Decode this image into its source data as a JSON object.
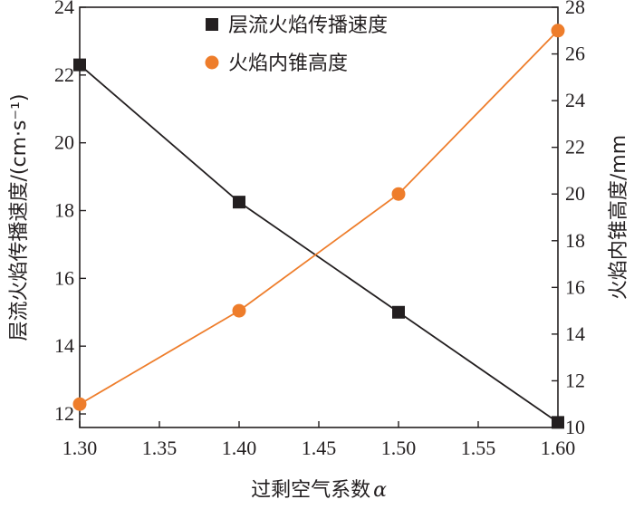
{
  "chart_data": {
    "type": "line",
    "xlabel": "过剩空气系数",
    "xlabel_symbol": "α",
    "ylabel_left": "层流火焰传播速度/(cm·s⁻¹)",
    "ylabel_right": "火焰内锥高度/mm",
    "xlim": [
      1.3,
      1.6
    ],
    "ylim_left": [
      11.6,
      24
    ],
    "ylim_right": [
      10,
      28
    ],
    "x_ticks": [
      "1.30",
      "1.35",
      "1.40",
      "1.45",
      "1.50",
      "1.55",
      "1.60"
    ],
    "y_left_ticks": [
      "12",
      "14",
      "16",
      "18",
      "20",
      "22",
      "24"
    ],
    "y_right_ticks": [
      "10",
      "12",
      "14",
      "16",
      "18",
      "20",
      "22",
      "24",
      "26",
      "28"
    ],
    "legend_position": "top-center",
    "series": [
      {
        "name": "层流火焰传播速度",
        "axis": "left",
        "marker": "square",
        "color": "#231f20",
        "x": [
          1.3,
          1.4,
          1.5,
          1.6
        ],
        "values": [
          22.3,
          18.25,
          15.0,
          11.75
        ]
      },
      {
        "name": "火焰内锥高度",
        "axis": "right",
        "marker": "circle",
        "color": "#ee7d2b",
        "x": [
          1.3,
          1.4,
          1.5,
          1.6
        ],
        "values": [
          11.0,
          15.0,
          20.0,
          27.0
        ]
      }
    ]
  }
}
